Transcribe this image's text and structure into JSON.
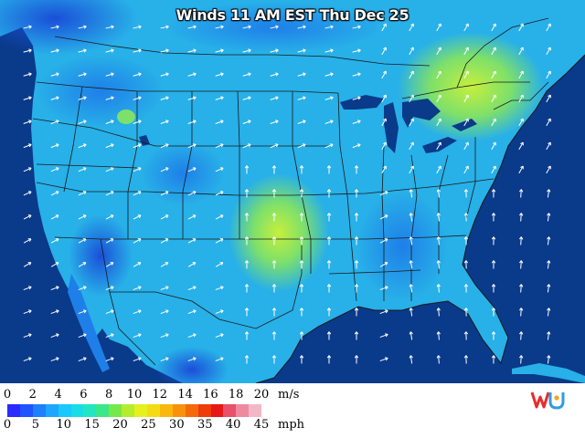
{
  "map": {
    "title": "Winds 11 AM EST Thu Dec 25",
    "field_colors": {
      "calm": "#1a4fd8",
      "light": "#1e7fe8",
      "moderate": "#28b0e8",
      "fresh": "#2fd6d0",
      "strong": "#7ee06a",
      "very_strong": "#c6ef3c",
      "water": "#0a3a8a",
      "borders": "#1a1a1a",
      "arrows": "#ffffff"
    }
  },
  "legend": {
    "top_unit": "m/s",
    "bottom_unit": "mph",
    "top_ticks": [
      "0",
      "2",
      "4",
      "6",
      "8",
      "10",
      "12",
      "14",
      "16",
      "18",
      "20"
    ],
    "bottom_ticks": [
      "0",
      "5",
      "10",
      "15",
      "20",
      "25",
      "30",
      "35",
      "40",
      "45"
    ],
    "colors": [
      "#2b2bff",
      "#1f54ff",
      "#1e7fff",
      "#1ea6ff",
      "#19c8ff",
      "#18dde6",
      "#22e6c2",
      "#3ae78a",
      "#77e84a",
      "#b4ed2e",
      "#e6f01e",
      "#f4dc14",
      "#f8b80e",
      "#f8920c",
      "#f46a0a",
      "#ee3c0a",
      "#e61818",
      "#e8506c",
      "#ee8aa0",
      "#f4b7c6"
    ]
  },
  "logo": {
    "name": "wu-logo-icon",
    "colors": [
      "#e82c2c",
      "#f5a31a",
      "#2f9de0"
    ]
  }
}
